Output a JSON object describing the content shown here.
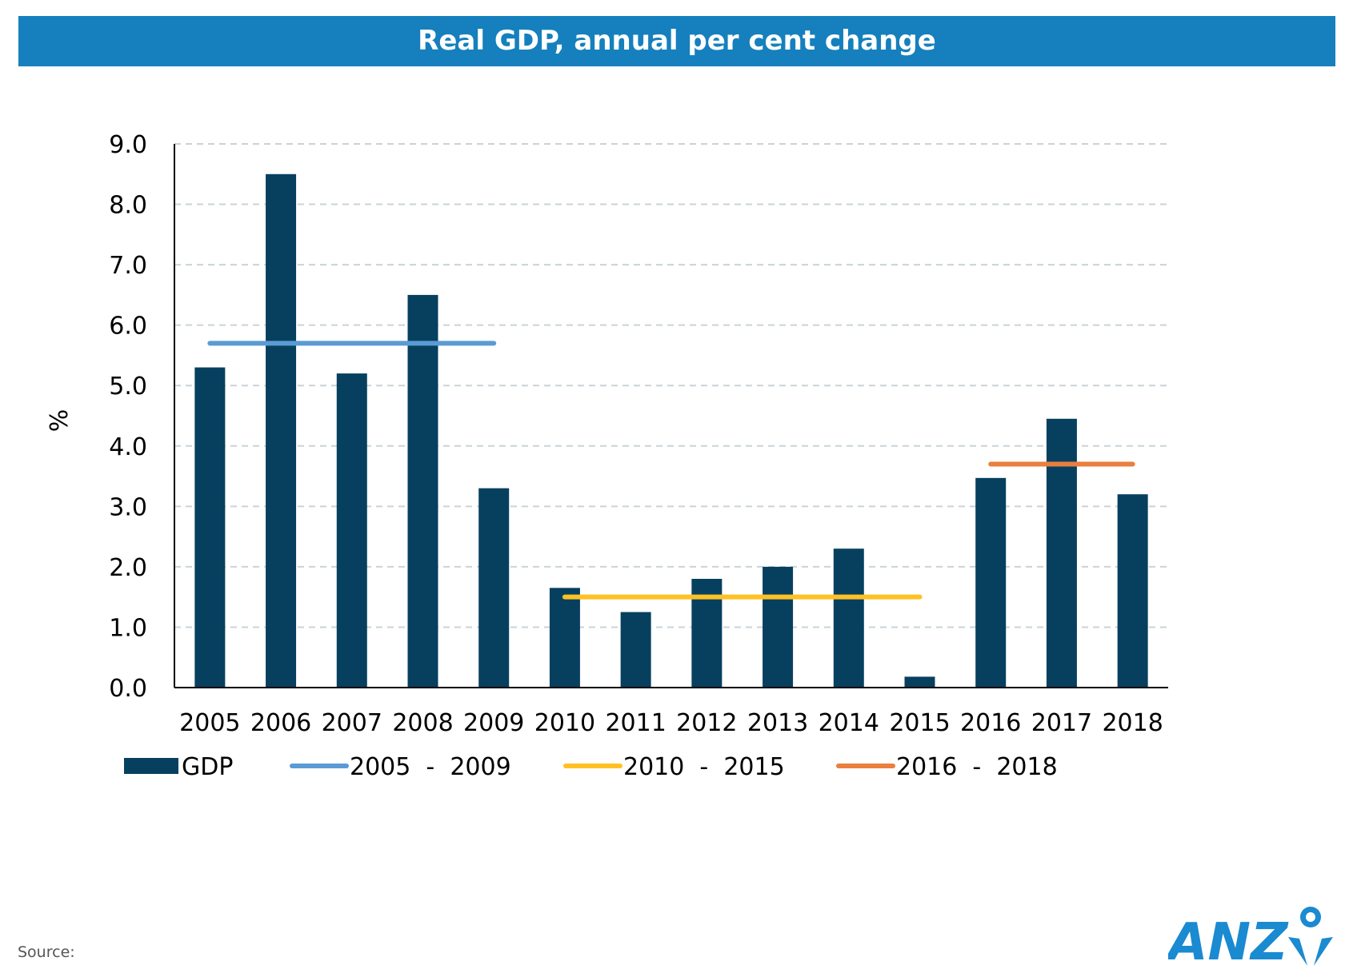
{
  "chart_data": {
    "type": "bar",
    "title": "Real GDP, annual per cent change",
    "xlabel": "",
    "ylabel": "%",
    "ylim": [
      0,
      9
    ],
    "yticks": [
      "0.0",
      "1.0",
      "2.0",
      "3.0",
      "4.0",
      "5.0",
      "6.0",
      "7.0",
      "8.0",
      "9.0"
    ],
    "grid": true,
    "legend_position": "bottom",
    "categories": [
      "2005",
      "2006",
      "2007",
      "2008",
      "2009",
      "2010",
      "2011",
      "2012",
      "2013",
      "2014",
      "2015",
      "2016",
      "2017",
      "2018"
    ],
    "series": [
      {
        "name": "GDP",
        "type": "bar",
        "color": "#07405f",
        "values": [
          5.3,
          8.5,
          5.2,
          6.5,
          3.3,
          1.65,
          1.25,
          1.8,
          2.0,
          2.3,
          0.18,
          3.47,
          4.45,
          3.2
        ]
      },
      {
        "name": "2005  -  2009",
        "type": "average-line",
        "color": "#5b9bd5",
        "start": "2005",
        "end": "2009",
        "value": 5.7
      },
      {
        "name": "2010  -  2015",
        "type": "average-line",
        "color": "#ffc124",
        "start": "2010",
        "end": "2015",
        "value": 1.5
      },
      {
        "name": "2016  -  2018",
        "type": "average-line",
        "color": "#ea7f3f",
        "start": "2016",
        "end": "2018",
        "value": 3.7
      }
    ]
  },
  "footer": {
    "source_label": "Source:",
    "logo_text": "ANZ"
  },
  "colors": {
    "title_bar": "#1580bd",
    "logo_blue": "#1a8ad1"
  }
}
